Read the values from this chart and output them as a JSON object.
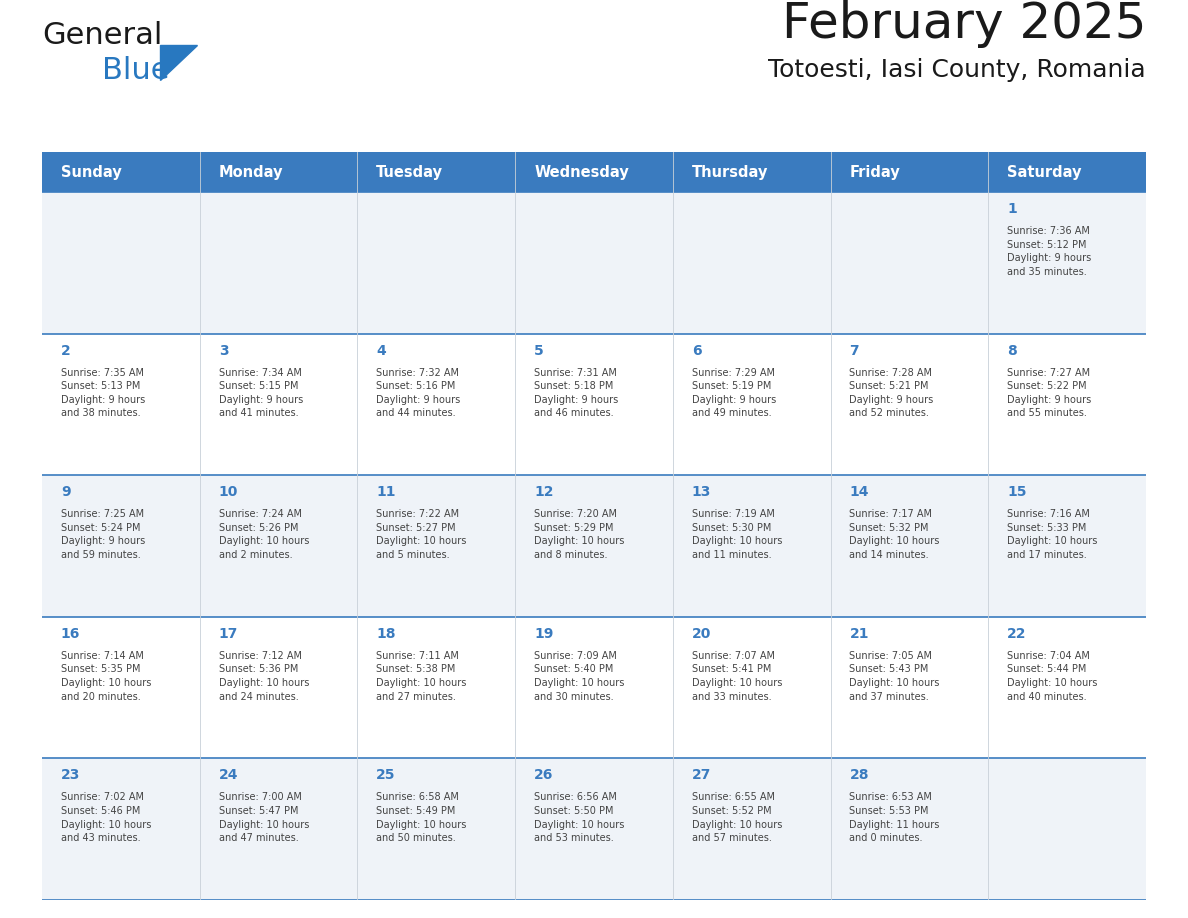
{
  "title": "February 2025",
  "subtitle": "Totoesti, Iasi County, Romania",
  "header_color": "#3a7bbf",
  "header_text_color": "#ffffff",
  "cell_bg_odd": "#eff3f8",
  "cell_bg_even": "#ffffff",
  "day_number_color": "#3a7bbf",
  "text_color": "#444444",
  "line_color": "#3a7bbf",
  "days_of_week": [
    "Sunday",
    "Monday",
    "Tuesday",
    "Wednesday",
    "Thursday",
    "Friday",
    "Saturday"
  ],
  "weeks": [
    [
      {
        "day": "",
        "info": ""
      },
      {
        "day": "",
        "info": ""
      },
      {
        "day": "",
        "info": ""
      },
      {
        "day": "",
        "info": ""
      },
      {
        "day": "",
        "info": ""
      },
      {
        "day": "",
        "info": ""
      },
      {
        "day": "1",
        "info": "Sunrise: 7:36 AM\nSunset: 5:12 PM\nDaylight: 9 hours\nand 35 minutes."
      }
    ],
    [
      {
        "day": "2",
        "info": "Sunrise: 7:35 AM\nSunset: 5:13 PM\nDaylight: 9 hours\nand 38 minutes."
      },
      {
        "day": "3",
        "info": "Sunrise: 7:34 AM\nSunset: 5:15 PM\nDaylight: 9 hours\nand 41 minutes."
      },
      {
        "day": "4",
        "info": "Sunrise: 7:32 AM\nSunset: 5:16 PM\nDaylight: 9 hours\nand 44 minutes."
      },
      {
        "day": "5",
        "info": "Sunrise: 7:31 AM\nSunset: 5:18 PM\nDaylight: 9 hours\nand 46 minutes."
      },
      {
        "day": "6",
        "info": "Sunrise: 7:29 AM\nSunset: 5:19 PM\nDaylight: 9 hours\nand 49 minutes."
      },
      {
        "day": "7",
        "info": "Sunrise: 7:28 AM\nSunset: 5:21 PM\nDaylight: 9 hours\nand 52 minutes."
      },
      {
        "day": "8",
        "info": "Sunrise: 7:27 AM\nSunset: 5:22 PM\nDaylight: 9 hours\nand 55 minutes."
      }
    ],
    [
      {
        "day": "9",
        "info": "Sunrise: 7:25 AM\nSunset: 5:24 PM\nDaylight: 9 hours\nand 59 minutes."
      },
      {
        "day": "10",
        "info": "Sunrise: 7:24 AM\nSunset: 5:26 PM\nDaylight: 10 hours\nand 2 minutes."
      },
      {
        "day": "11",
        "info": "Sunrise: 7:22 AM\nSunset: 5:27 PM\nDaylight: 10 hours\nand 5 minutes."
      },
      {
        "day": "12",
        "info": "Sunrise: 7:20 AM\nSunset: 5:29 PM\nDaylight: 10 hours\nand 8 minutes."
      },
      {
        "day": "13",
        "info": "Sunrise: 7:19 AM\nSunset: 5:30 PM\nDaylight: 10 hours\nand 11 minutes."
      },
      {
        "day": "14",
        "info": "Sunrise: 7:17 AM\nSunset: 5:32 PM\nDaylight: 10 hours\nand 14 minutes."
      },
      {
        "day": "15",
        "info": "Sunrise: 7:16 AM\nSunset: 5:33 PM\nDaylight: 10 hours\nand 17 minutes."
      }
    ],
    [
      {
        "day": "16",
        "info": "Sunrise: 7:14 AM\nSunset: 5:35 PM\nDaylight: 10 hours\nand 20 minutes."
      },
      {
        "day": "17",
        "info": "Sunrise: 7:12 AM\nSunset: 5:36 PM\nDaylight: 10 hours\nand 24 minutes."
      },
      {
        "day": "18",
        "info": "Sunrise: 7:11 AM\nSunset: 5:38 PM\nDaylight: 10 hours\nand 27 minutes."
      },
      {
        "day": "19",
        "info": "Sunrise: 7:09 AM\nSunset: 5:40 PM\nDaylight: 10 hours\nand 30 minutes."
      },
      {
        "day": "20",
        "info": "Sunrise: 7:07 AM\nSunset: 5:41 PM\nDaylight: 10 hours\nand 33 minutes."
      },
      {
        "day": "21",
        "info": "Sunrise: 7:05 AM\nSunset: 5:43 PM\nDaylight: 10 hours\nand 37 minutes."
      },
      {
        "day": "22",
        "info": "Sunrise: 7:04 AM\nSunset: 5:44 PM\nDaylight: 10 hours\nand 40 minutes."
      }
    ],
    [
      {
        "day": "23",
        "info": "Sunrise: 7:02 AM\nSunset: 5:46 PM\nDaylight: 10 hours\nand 43 minutes."
      },
      {
        "day": "24",
        "info": "Sunrise: 7:00 AM\nSunset: 5:47 PM\nDaylight: 10 hours\nand 47 minutes."
      },
      {
        "day": "25",
        "info": "Sunrise: 6:58 AM\nSunset: 5:49 PM\nDaylight: 10 hours\nand 50 minutes."
      },
      {
        "day": "26",
        "info": "Sunrise: 6:56 AM\nSunset: 5:50 PM\nDaylight: 10 hours\nand 53 minutes."
      },
      {
        "day": "27",
        "info": "Sunrise: 6:55 AM\nSunset: 5:52 PM\nDaylight: 10 hours\nand 57 minutes."
      },
      {
        "day": "28",
        "info": "Sunrise: 6:53 AM\nSunset: 5:53 PM\nDaylight: 11 hours\nand 0 minutes."
      },
      {
        "day": "",
        "info": ""
      }
    ]
  ],
  "logo_general_color": "#1a1a1a",
  "logo_blue_color": "#2878c0",
  "logo_triangle_color": "#2878c0"
}
